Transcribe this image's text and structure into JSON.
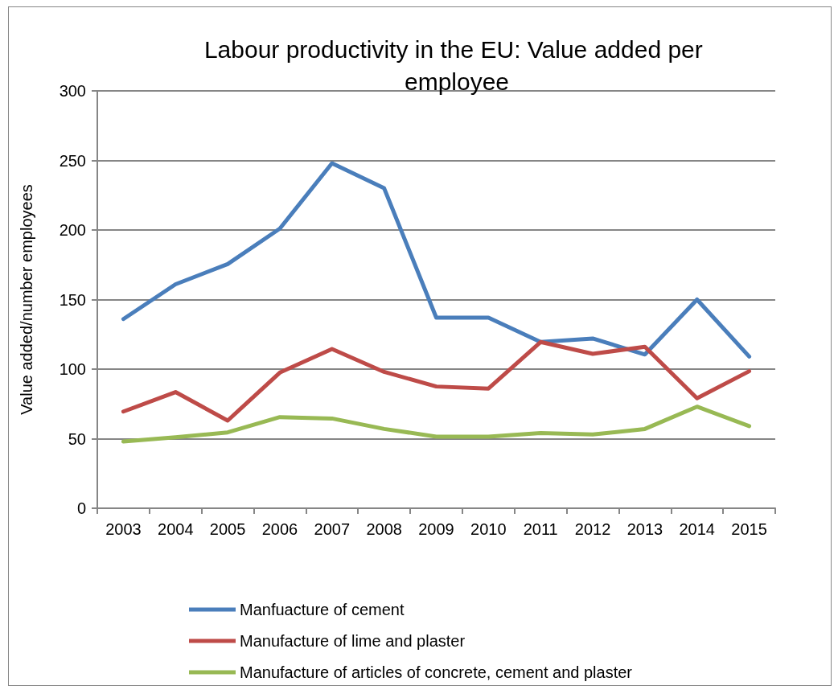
{
  "chart_data": {
    "type": "line",
    "title": "Labour productivity in the EU: Value added per employee",
    "ylabel": "Value added/number employees",
    "categories": [
      "2003",
      "2004",
      "2005",
      "2006",
      "2007",
      "2008",
      "2009",
      "2010",
      "2011",
      "2012",
      "2013",
      "2014",
      "2015"
    ],
    "series": [
      {
        "name": "Manfuacture of cement",
        "color": "#4a7ebb",
        "values": [
          136,
          161,
          175.5,
          201,
          248,
          230,
          137,
          137,
          119.5,
          122,
          110.5,
          150,
          109
        ]
      },
      {
        "name": "Manufacture of lime and plaster",
        "color": "#be4b48",
        "values": [
          69.5,
          83.5,
          63,
          97.5,
          114.5,
          98,
          87.5,
          86,
          119.5,
          111,
          116,
          79,
          98.5
        ]
      },
      {
        "name": "Manufacture of articles of concrete, cement and plaster",
        "color": "#98b954",
        "values": [
          48,
          51,
          54.5,
          65.5,
          64.5,
          57,
          51.5,
          51.5,
          54,
          53,
          57,
          73,
          59
        ]
      }
    ],
    "ylim": [
      0,
      300
    ],
    "yticks": [
      0,
      50,
      100,
      150,
      200,
      250,
      300
    ],
    "grid": "y",
    "legend": "bottom",
    "marker": "none",
    "line_style": "solid"
  }
}
